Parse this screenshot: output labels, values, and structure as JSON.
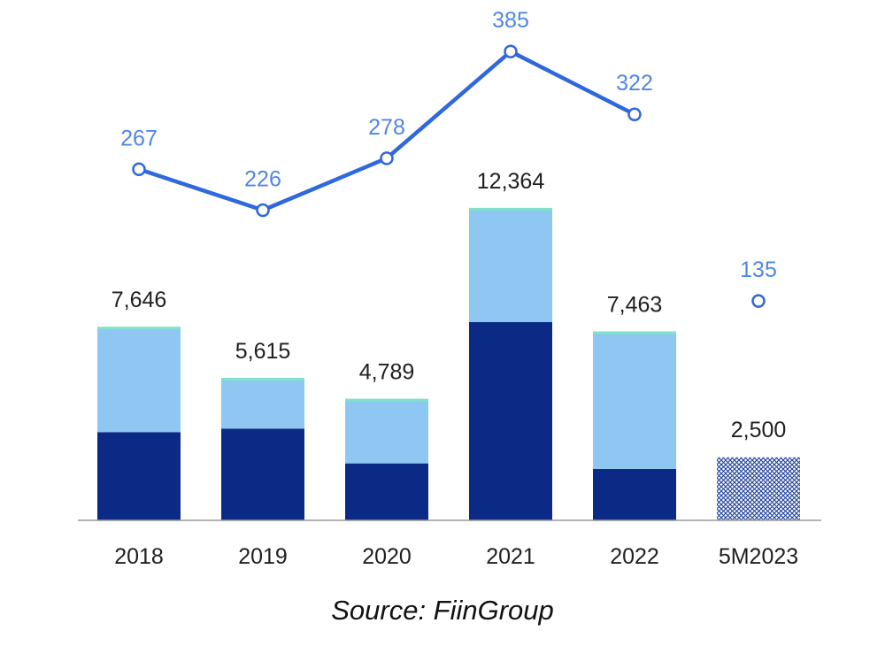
{
  "chart_data": {
    "type": "bar",
    "categories": [
      "2018",
      "2019",
      "2020",
      "2021",
      "2022",
      "5M2023"
    ],
    "series": [
      {
        "name": "dark segment",
        "type": "stacked-bar",
        "values": [
          3500,
          3640,
          2260,
          7870,
          2040,
          null
        ]
      },
      {
        "name": "light segment",
        "type": "stacked-bar",
        "values": [
          4146,
          1975,
          2529,
          4494,
          5423,
          null
        ]
      },
      {
        "name": "5M2023 (hatched)",
        "type": "bar",
        "values": [
          null,
          null,
          null,
          null,
          null,
          2500
        ]
      },
      {
        "name": "line series",
        "type": "line",
        "values": [
          267,
          226,
          278,
          385,
          322,
          135
        ]
      }
    ],
    "bar_totals": [
      "7,646",
      "5,615",
      "4,789",
      "12,364",
      "7,463",
      "2,500"
    ],
    "line_labels": [
      "267",
      "226",
      "278",
      "385",
      "322",
      "135"
    ],
    "line_connected": [
      true,
      true,
      true,
      true,
      true,
      false
    ],
    "ylim_bars": [
      0,
      14500
    ],
    "ylim_line": [
      -60,
      410
    ],
    "colors": {
      "dark": "#0b2a86",
      "light": "#8ec8f2",
      "top_edge": "#7fe3c6",
      "line": "#2f68dd",
      "line_label": "#4f86e6",
      "hatch": "#1f3f99",
      "axis": "#9a9a9a"
    }
  },
  "source_text": "Source: FiinGroup"
}
